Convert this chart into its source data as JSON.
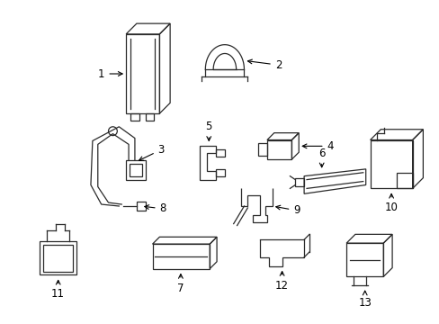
{
  "background_color": "#ffffff",
  "fig_width": 4.89,
  "fig_height": 3.6,
  "dpi": 100,
  "line_color": "#2a2a2a",
  "label_fontsize": 8.5,
  "arrow_color": "#000000"
}
